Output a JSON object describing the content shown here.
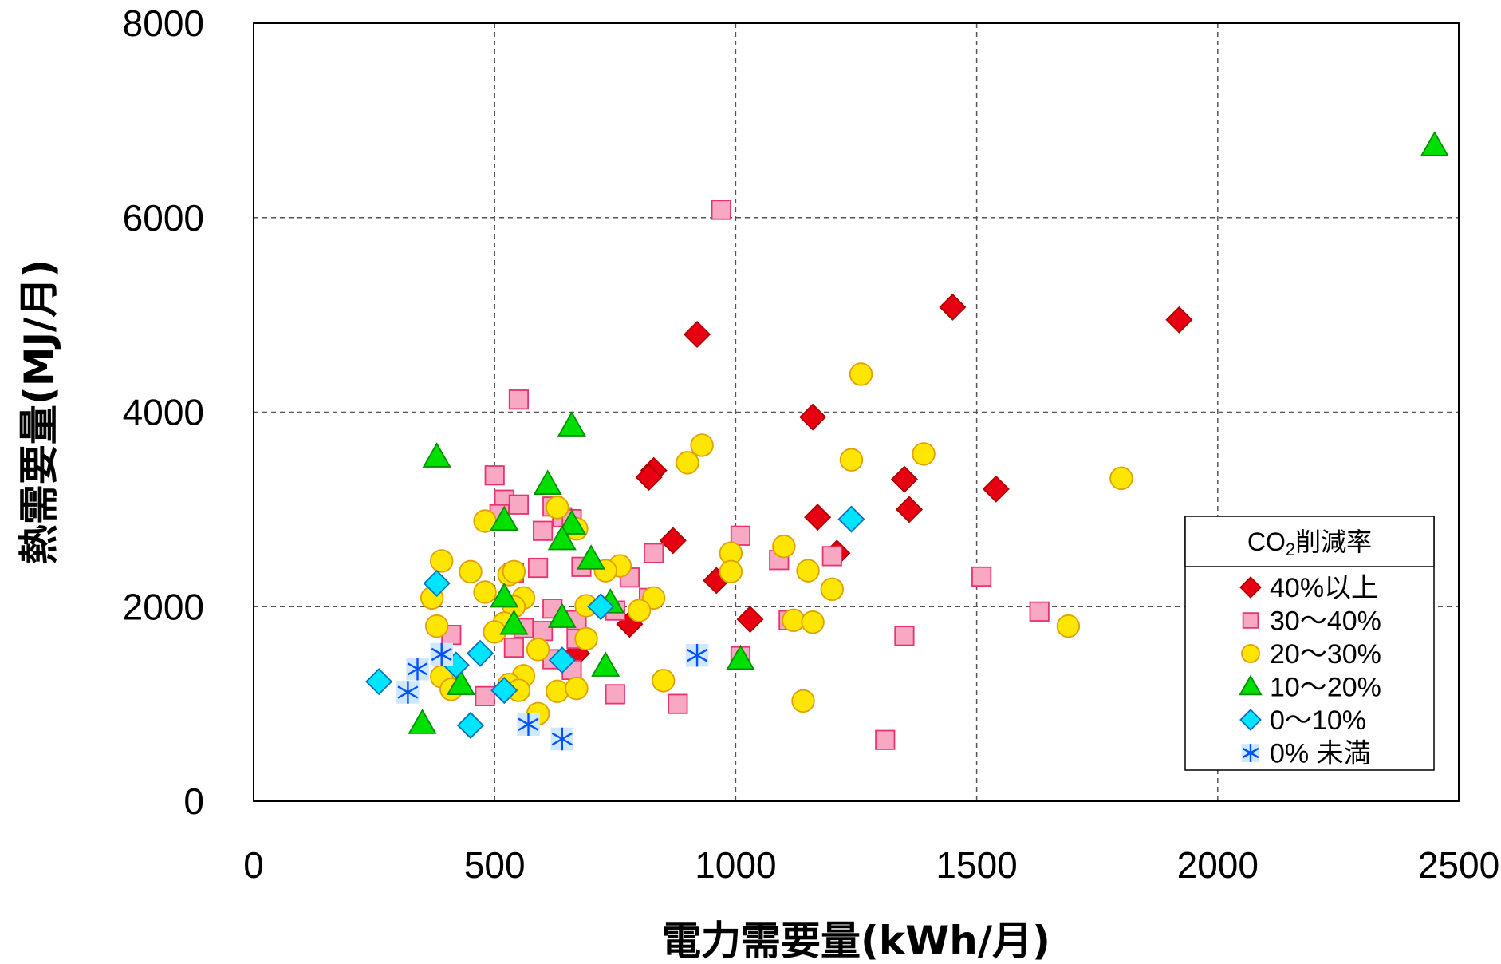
{
  "chart_data": {
    "type": "scatter",
    "xlabel": "電力需要量(kWh/月)",
    "ylabel": "熱需要量(MJ/月)",
    "xlim": [
      0,
      2500
    ],
    "ylim": [
      0,
      8000
    ],
    "xticks": [
      "0",
      "500",
      "1000",
      "1500",
      "2000",
      "2500"
    ],
    "yticks": [
      "0",
      "2000",
      "4000",
      "6000",
      "8000"
    ],
    "grid": true,
    "legend": {
      "title_main": "CO",
      "title_sub": "2",
      "title_rest": "削減率",
      "placement": "bottom-right"
    },
    "series": [
      {
        "name": "40%以上",
        "marker": "diamond",
        "color": "#e60012",
        "stroke": "#b00000",
        "points": [
          [
            920,
            4800
          ],
          [
            1450,
            5080
          ],
          [
            1920,
            4950
          ],
          [
            1160,
            3950
          ],
          [
            830,
            3400
          ],
          [
            820,
            3330
          ],
          [
            1350,
            3310
          ],
          [
            1540,
            3210
          ],
          [
            1360,
            3000
          ],
          [
            1170,
            2920
          ],
          [
            870,
            2680
          ],
          [
            1210,
            2550
          ],
          [
            960,
            2270
          ],
          [
            1030,
            1870
          ],
          [
            780,
            1820
          ],
          [
            670,
            1520
          ]
        ]
      },
      {
        "name": "30～40%",
        "marker": "square",
        "color": "#f9a8c4",
        "stroke": "#e8336f",
        "points": [
          [
            970,
            6080
          ],
          [
            550,
            4130
          ],
          [
            500,
            3350
          ],
          [
            520,
            3100
          ],
          [
            550,
            3050
          ],
          [
            510,
            2950
          ],
          [
            620,
            3030
          ],
          [
            640,
            2920
          ],
          [
            660,
            2900
          ],
          [
            600,
            2780
          ],
          [
            1010,
            2730
          ],
          [
            830,
            2550
          ],
          [
            1090,
            2480
          ],
          [
            1200,
            2520
          ],
          [
            680,
            2410
          ],
          [
            590,
            2400
          ],
          [
            540,
            2350
          ],
          [
            780,
            2300
          ],
          [
            1510,
            2310
          ],
          [
            820,
            2090
          ],
          [
            620,
            1980
          ],
          [
            750,
            1960
          ],
          [
            1630,
            1950
          ],
          [
            1110,
            1860
          ],
          [
            670,
            1860
          ],
          [
            560,
            1780
          ],
          [
            600,
            1750
          ],
          [
            670,
            1670
          ],
          [
            1350,
            1700
          ],
          [
            410,
            1710
          ],
          [
            540,
            1580
          ],
          [
            620,
            1460
          ],
          [
            1010,
            1490
          ],
          [
            660,
            1350
          ],
          [
            400,
            1280
          ],
          [
            750,
            1100
          ],
          [
            480,
            1080
          ],
          [
            880,
            1000
          ],
          [
            1310,
            630
          ]
        ]
      },
      {
        "name": "20～30%",
        "marker": "circle",
        "color": "#ffe600",
        "stroke": "#e0a000",
        "points": [
          [
            1260,
            4390
          ],
          [
            930,
            3660
          ],
          [
            1390,
            3570
          ],
          [
            900,
            3480
          ],
          [
            1240,
            3510
          ],
          [
            1800,
            3320
          ],
          [
            630,
            3020
          ],
          [
            480,
            2880
          ],
          [
            670,
            2800
          ],
          [
            1100,
            2620
          ],
          [
            990,
            2550
          ],
          [
            390,
            2470
          ],
          [
            760,
            2420
          ],
          [
            450,
            2360
          ],
          [
            530,
            2330
          ],
          [
            540,
            2360
          ],
          [
            730,
            2370
          ],
          [
            1150,
            2370
          ],
          [
            990,
            2360
          ],
          [
            480,
            2150
          ],
          [
            1200,
            2180
          ],
          [
            370,
            2090
          ],
          [
            560,
            2090
          ],
          [
            830,
            2090
          ],
          [
            690,
            2010
          ],
          [
            540,
            2000
          ],
          [
            800,
            1960
          ],
          [
            380,
            1800
          ],
          [
            1120,
            1860
          ],
          [
            1160,
            1840
          ],
          [
            1690,
            1800
          ],
          [
            520,
            1830
          ],
          [
            500,
            1740
          ],
          [
            690,
            1670
          ],
          [
            590,
            1560
          ],
          [
            390,
            1280
          ],
          [
            560,
            1290
          ],
          [
            850,
            1240
          ],
          [
            530,
            1200
          ],
          [
            410,
            1150
          ],
          [
            550,
            1140
          ],
          [
            630,
            1130
          ],
          [
            670,
            1160
          ],
          [
            590,
            900
          ],
          [
            1140,
            1030
          ]
        ]
      },
      {
        "name": "10～20%",
        "marker": "triangle",
        "color": "#00e000",
        "stroke": "#009000",
        "points": [
          [
            2450,
            6740
          ],
          [
            660,
            3860
          ],
          [
            380,
            3540
          ],
          [
            610,
            3260
          ],
          [
            520,
            2890
          ],
          [
            660,
            2850
          ],
          [
            640,
            2690
          ],
          [
            700,
            2490
          ],
          [
            520,
            2100
          ],
          [
            740,
            2040
          ],
          [
            540,
            1820
          ],
          [
            640,
            1890
          ],
          [
            730,
            1390
          ],
          [
            1010,
            1460
          ],
          [
            430,
            1200
          ],
          [
            350,
            800
          ]
        ]
      },
      {
        "name": "0～10%",
        "marker": "diamond",
        "color": "#00e5ff",
        "stroke": "#0070c0",
        "points": [
          [
            1240,
            2900
          ],
          [
            380,
            2240
          ],
          [
            720,
            2000
          ],
          [
            470,
            1520
          ],
          [
            420,
            1400
          ],
          [
            640,
            1450
          ],
          [
            520,
            1140
          ],
          [
            260,
            1230
          ],
          [
            450,
            780
          ]
        ]
      },
      {
        "name": "0% 未満",
        "marker": "asterisk",
        "color": "#0050ff",
        "stroke": "#0050ff",
        "points": [
          [
            920,
            1500
          ],
          [
            390,
            1510
          ],
          [
            340,
            1360
          ],
          [
            320,
            1120
          ],
          [
            570,
            790
          ],
          [
            640,
            640
          ]
        ]
      }
    ]
  }
}
